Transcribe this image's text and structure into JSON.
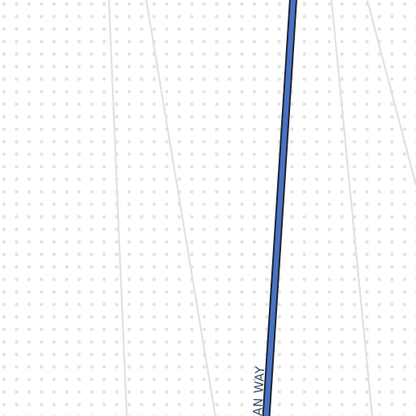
{
  "map": {
    "route_color": "#4a72c4",
    "route_casing_color": "#1b2433",
    "background_color": "#ffffff",
    "pattern_dot_color": "#e3e3dc",
    "minor_street_color": "#e1e1e1",
    "label_color": "#3a4a66"
  },
  "streets": [
    {
      "name": "AN WAY",
      "kind": "primary",
      "highlighted": true
    }
  ]
}
